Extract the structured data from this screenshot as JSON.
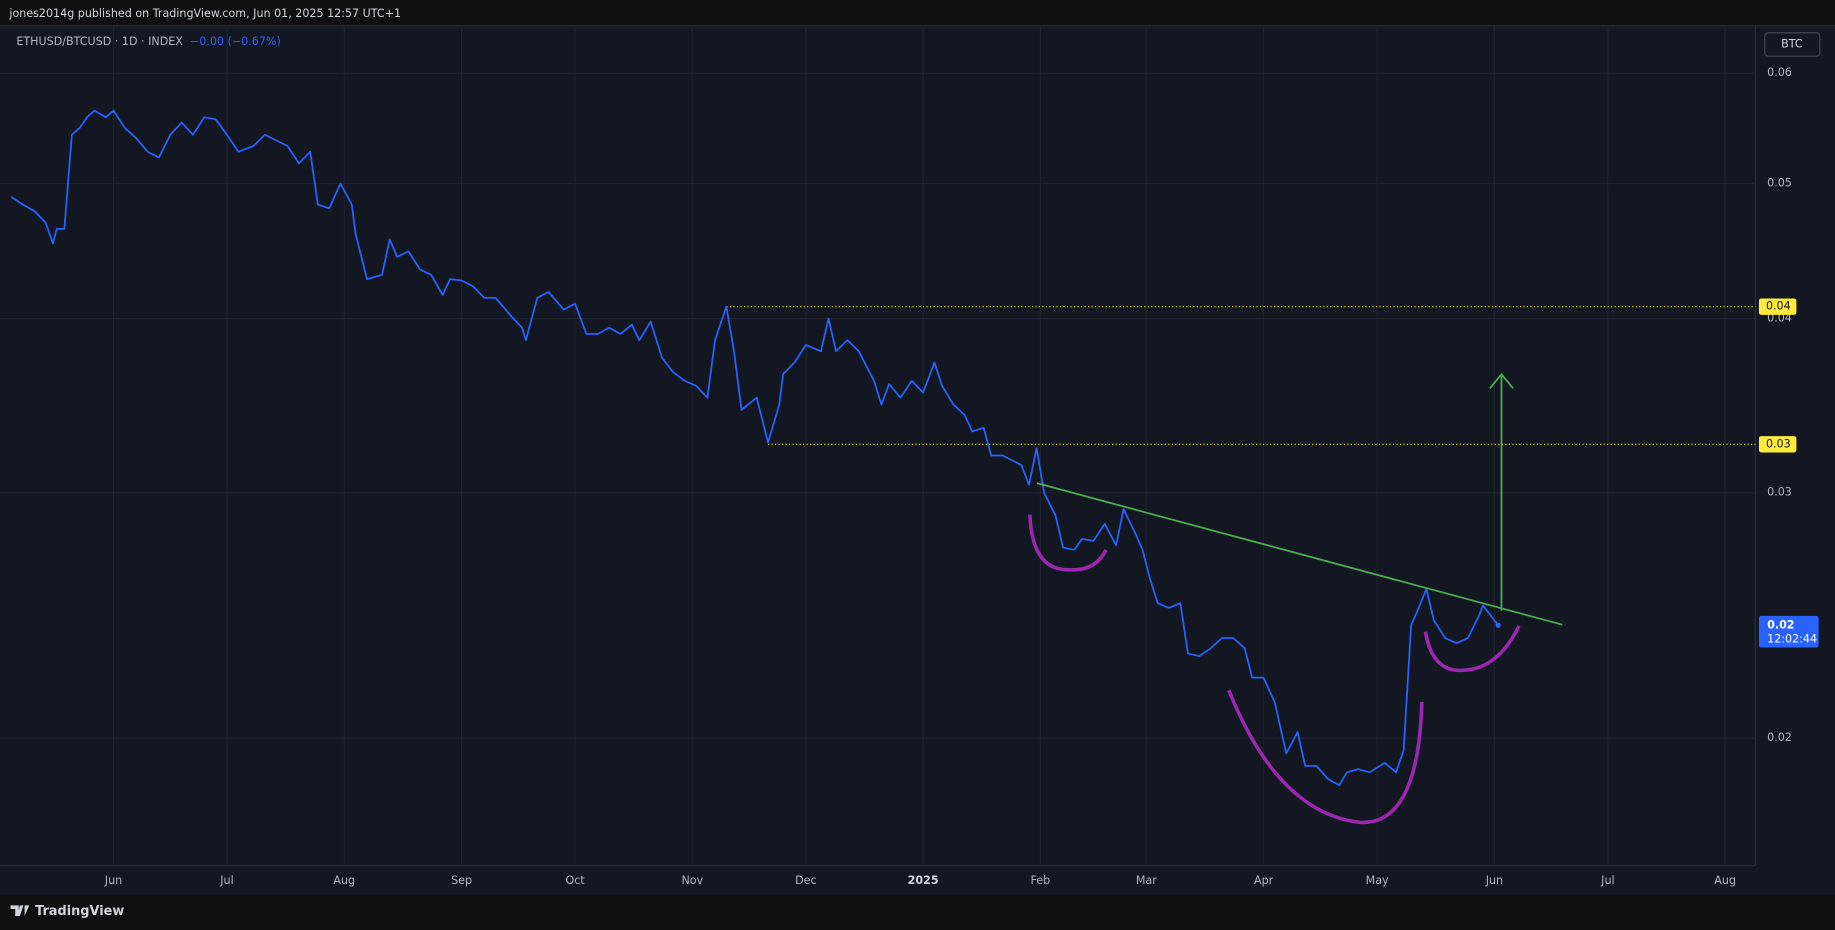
{
  "header": "jones2014g published on TradingView.com, Jun 01, 2025 12:57 UTC+1",
  "currency_button": "BTC",
  "footer_logo": "TradingView",
  "chart_data": {
    "type": "line",
    "title": "ETHUSD/BTCUSD · 1D · INDEX",
    "change": "−0.00 (−0.67%)",
    "color": "#2962ff",
    "log_scale": true,
    "grid": true,
    "xlim": [
      0,
      461
    ],
    "ylim": [
      0.0162,
      0.0649
    ],
    "xticks": [
      {
        "value": 27,
        "label": "Jun"
      },
      {
        "value": 57,
        "label": "Jul"
      },
      {
        "value": 88,
        "label": "Aug"
      },
      {
        "value": 119,
        "label": "Sep"
      },
      {
        "value": 149,
        "label": "Oct"
      },
      {
        "value": 180,
        "label": "Nov"
      },
      {
        "value": 210,
        "label": "Dec"
      },
      {
        "value": 241,
        "label": "2025"
      },
      {
        "value": 272,
        "label": "Feb"
      },
      {
        "value": 300,
        "label": "Mar"
      },
      {
        "value": 331,
        "label": "Apr"
      },
      {
        "value": 361,
        "label": "May"
      },
      {
        "value": 392,
        "label": "Jun"
      },
      {
        "value": 422,
        "label": "Jul"
      },
      {
        "value": 453,
        "label": "Aug"
      }
    ],
    "yticks": [
      0.06,
      0.05,
      0.04,
      0.03,
      0.02
    ],
    "x": [
      0,
      3,
      6,
      9,
      11,
      12,
      14,
      16,
      18,
      20,
      22,
      25,
      27,
      30,
      33,
      36,
      39,
      42,
      45,
      48,
      51,
      54,
      57,
      60,
      64,
      67,
      70,
      73,
      76,
      79,
      81,
      84,
      87,
      90,
      91,
      94,
      98,
      100,
      102,
      105,
      108,
      111,
      114,
      116,
      119,
      122,
      125,
      128,
      132,
      135,
      136,
      139,
      142,
      146,
      149,
      152,
      155,
      158,
      161,
      164,
      166,
      169,
      172,
      175,
      178,
      181,
      184,
      186,
      189,
      191,
      193,
      197,
      200,
      203,
      204,
      207,
      210,
      214,
      216,
      218,
      221,
      224,
      228,
      230,
      232,
      235,
      238,
      241,
      244,
      246,
      249,
      252,
      254,
      257,
      259,
      262,
      265,
      267,
      269,
      271,
      273,
      276,
      278,
      281,
      283,
      286,
      289,
      292,
      294,
      297,
      299,
      301,
      303,
      306,
      309,
      311,
      314,
      317,
      320,
      323,
      326,
      328,
      331,
      334,
      337,
      340,
      342,
      345,
      348,
      351,
      353,
      356,
      359,
      363,
      366,
      368,
      370,
      372,
      374,
      376,
      379,
      382,
      385,
      388,
      389,
      392,
      393
    ],
    "values": [
      0.0489,
      0.0483,
      0.0478,
      0.0469,
      0.0453,
      0.0464,
      0.0464,
      0.0542,
      0.0548,
      0.0558,
      0.0564,
      0.0558,
      0.0564,
      0.0548,
      0.0539,
      0.0527,
      0.0522,
      0.0542,
      0.0553,
      0.0542,
      0.0558,
      0.0556,
      0.0542,
      0.0527,
      0.0532,
      0.0542,
      0.0537,
      0.0532,
      0.0517,
      0.0527,
      0.0483,
      0.048,
      0.05,
      0.0483,
      0.046,
      0.0427,
      0.043,
      0.0456,
      0.0443,
      0.0447,
      0.0434,
      0.043,
      0.0416,
      0.0427,
      0.0426,
      0.0422,
      0.0414,
      0.0414,
      0.0402,
      0.0394,
      0.0386,
      0.0414,
      0.0418,
      0.0406,
      0.041,
      0.039,
      0.039,
      0.0394,
      0.039,
      0.0396,
      0.0386,
      0.0398,
      0.0375,
      0.0366,
      0.0361,
      0.0358,
      0.0351,
      0.0386,
      0.0408,
      0.0379,
      0.0344,
      0.0351,
      0.0326,
      0.0347,
      0.0365,
      0.0372,
      0.0383,
      0.0379,
      0.04,
      0.0379,
      0.0386,
      0.0379,
      0.0361,
      0.0347,
      0.0359,
      0.0351,
      0.0361,
      0.0354,
      0.0372,
      0.0358,
      0.0347,
      0.0341,
      0.0332,
      0.0334,
      0.0319,
      0.0319,
      0.0316,
      0.0314,
      0.0304,
      0.0323,
      0.03,
      0.0289,
      0.0274,
      0.0273,
      0.0278,
      0.0277,
      0.0285,
      0.0275,
      0.0292,
      0.0281,
      0.0273,
      0.026,
      0.025,
      0.0248,
      0.025,
      0.023,
      0.0229,
      0.0232,
      0.0236,
      0.0236,
      0.0232,
      0.0221,
      0.0221,
      0.0212,
      0.0195,
      0.0202,
      0.0191,
      0.0191,
      0.0187,
      0.0185,
      0.0189,
      0.019,
      0.0189,
      0.0192,
      0.0189,
      0.0196,
      0.0241,
      0.0248,
      0.0256,
      0.0243,
      0.0236,
      0.0234,
      0.0236,
      0.0245,
      0.0249,
      0.0243,
      0.0241
    ],
    "levels": [
      {
        "value": 0.0408,
        "label": "0.04",
        "start_x": 189
      },
      {
        "value": 0.0325,
        "label": "0.03",
        "start_x": 200
      }
    ],
    "level_color": "#ffeb3b",
    "last_label": "0.02",
    "countdown": "12:02:44"
  }
}
